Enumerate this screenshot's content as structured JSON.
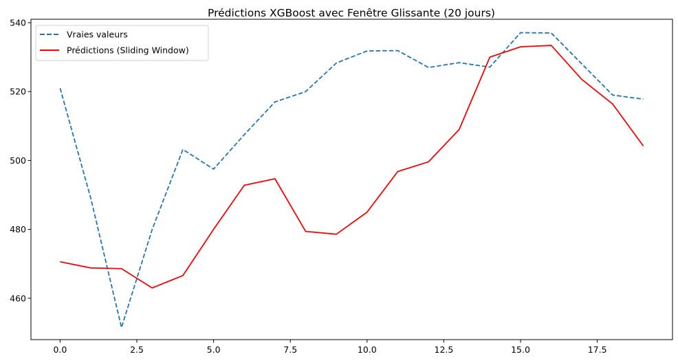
{
  "chart_data": {
    "type": "line",
    "title": "Prédictions XGBoost avec Fenêtre Glissante (20 jours)",
    "xlabel": "",
    "ylabel": "",
    "xlim": [
      -0.95,
      19.95
    ],
    "ylim": [
      448,
      541
    ],
    "xticks": [
      0.0,
      2.5,
      5.0,
      7.5,
      10.0,
      12.5,
      15.0,
      17.5
    ],
    "xtick_labels": [
      "0.0",
      "2.5",
      "5.0",
      "7.5",
      "10.0",
      "12.5",
      "15.0",
      "17.5"
    ],
    "yticks": [
      460,
      480,
      500,
      520,
      540
    ],
    "ytick_labels": [
      "460",
      "480",
      "500",
      "520",
      "540"
    ],
    "grid": false,
    "legend": "top-left",
    "x": [
      0,
      1,
      2,
      3,
      4,
      5,
      6,
      7,
      8,
      9,
      10,
      11,
      12,
      13,
      14,
      15,
      16,
      17,
      18,
      19
    ],
    "series": [
      {
        "name": "Vraies valeurs",
        "color": "#1f77b4",
        "style": "dashed",
        "values": [
          521,
          489,
          451.5,
          480,
          503.2,
          497.5,
          507.5,
          517,
          520,
          528.3,
          531.8,
          531.9,
          527,
          528.4,
          527.1,
          537.1,
          537,
          528,
          519,
          517.8
        ]
      },
      {
        "name": "Prédictions (Sliding Window)",
        "color": "#ff0000",
        "style": "solid",
        "values": [
          470.6,
          468.8,
          468.6,
          463,
          466.6,
          480,
          492.8,
          494.7,
          479.4,
          478.6,
          485,
          496.8,
          499.6,
          509,
          530,
          533,
          533.4,
          523.5,
          516.4,
          504.2
        ]
      }
    ]
  }
}
